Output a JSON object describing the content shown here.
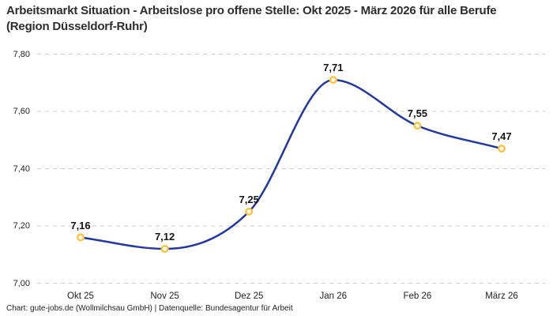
{
  "header": {
    "title": "Arbeitsmarkt Situation - Arbeitslose pro offene Stelle: Okt 2025 - März 2026 für alle Berufe (Region Düsseldorf-Ruhr)"
  },
  "chart_data": {
    "type": "line",
    "categories": [
      "Okt 25",
      "Nov 25",
      "Dez 25",
      "Jan 26",
      "Feb 26",
      "März 26"
    ],
    "values": [
      7.16,
      7.12,
      7.25,
      7.71,
      7.55,
      7.47
    ],
    "point_labels": [
      "7,16",
      "7,12",
      "7,25",
      "7,71",
      "7,55",
      "7,47"
    ],
    "y_ticks": [
      7.0,
      7.2,
      7.4,
      7.6,
      7.8
    ],
    "y_tick_labels": [
      "7,00",
      "7,20",
      "7,40",
      "7,60",
      "7,80"
    ],
    "ylim": [
      7.0,
      7.8
    ],
    "grid": "horizontal-dashed",
    "legend": "none",
    "curve": "smooth-monotone",
    "colors": {
      "line": "#2337a0",
      "marker_ring": "#fcc33a",
      "marker_fill": "#ffffff",
      "gridline": "#cdcdcd",
      "label_text": "#141414"
    }
  },
  "footer": {
    "text": "Chart: gute-jobs.de (Wollmilchsau GmbH) | Datenquelle: Bundesagentur für Arbeit"
  }
}
